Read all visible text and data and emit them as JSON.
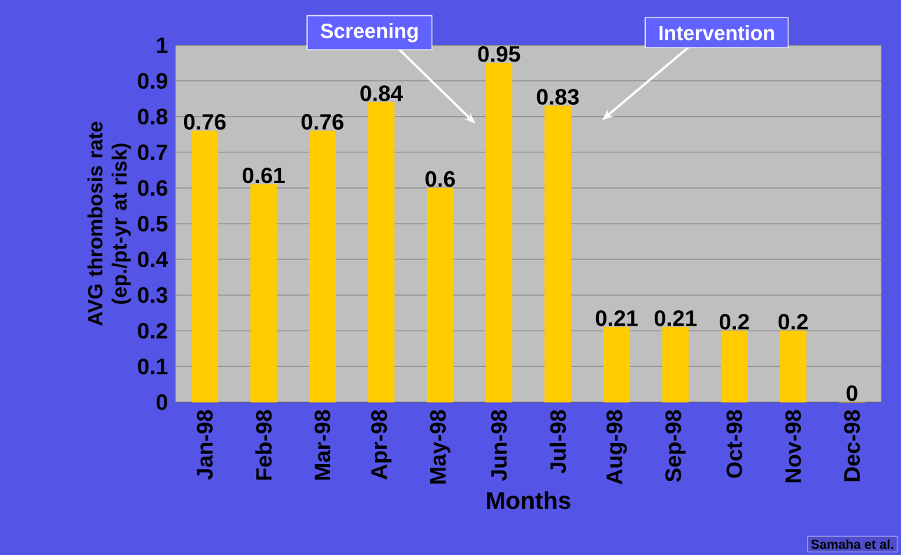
{
  "chart_data": {
    "type": "bar",
    "xlabel": "Months",
    "ylabel": "AVG thrombosis rate (ep./pt-yr at risk)",
    "categories": [
      "Jan-98",
      "Feb-98",
      "Mar-98",
      "Apr-98",
      "May-98",
      "Jun-98",
      "Jul-98",
      "Aug-98",
      "Sep-98",
      "Oct-98",
      "Nov-98",
      "Dec-98"
    ],
    "values": [
      0.76,
      0.61,
      0.76,
      0.84,
      0.6,
      0.95,
      0.83,
      0.21,
      0.21,
      0.2,
      0.2,
      0
    ],
    "color": "#ffcc00",
    "data_labels": true,
    "grid": "y",
    "ylim": [
      0,
      1
    ],
    "yticks": [
      0,
      0.1,
      0.2,
      0.3,
      0.4,
      0.5,
      0.6,
      0.7,
      0.8,
      0.9,
      1
    ],
    "annotations": [
      "Screening",
      "Intervention",
      "Samaha et al."
    ]
  }
}
